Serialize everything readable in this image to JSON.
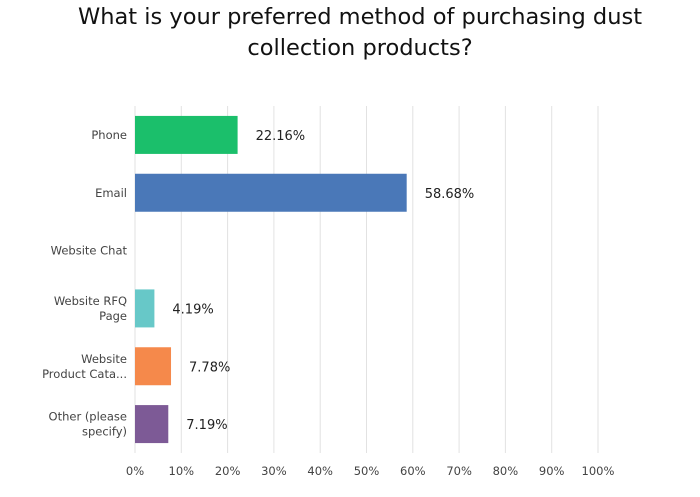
{
  "chart_data": {
    "type": "bar",
    "orientation": "horizontal",
    "title": "What is your preferred method of purchasing dust collection products?",
    "categories": [
      [
        "Phone"
      ],
      [
        "Email"
      ],
      [
        "Website Chat"
      ],
      [
        "Website RFQ",
        "Page"
      ],
      [
        "Website",
        "Product Cata..."
      ],
      [
        "Other (please",
        "specify)"
      ]
    ],
    "values": [
      22.16,
      58.68,
      0,
      4.19,
      7.78,
      7.19
    ],
    "value_labels": [
      "22.16%",
      "58.68%",
      "",
      "4.19%",
      "7.78%",
      "7.19%"
    ],
    "bar_colors": [
      "#1bbf6b",
      "#4a78b8",
      "#cccccc",
      "#67c8c8",
      "#f5894b",
      "#7d5a96"
    ],
    "xlim": [
      0,
      100
    ],
    "xticks": [
      0,
      10,
      20,
      30,
      40,
      50,
      60,
      70,
      80,
      90,
      100
    ],
    "xtick_labels": [
      "0%",
      "10%",
      "20%",
      "30%",
      "40%",
      "50%",
      "60%",
      "70%",
      "80%",
      "90%",
      "100%"
    ],
    "grid": true
  }
}
